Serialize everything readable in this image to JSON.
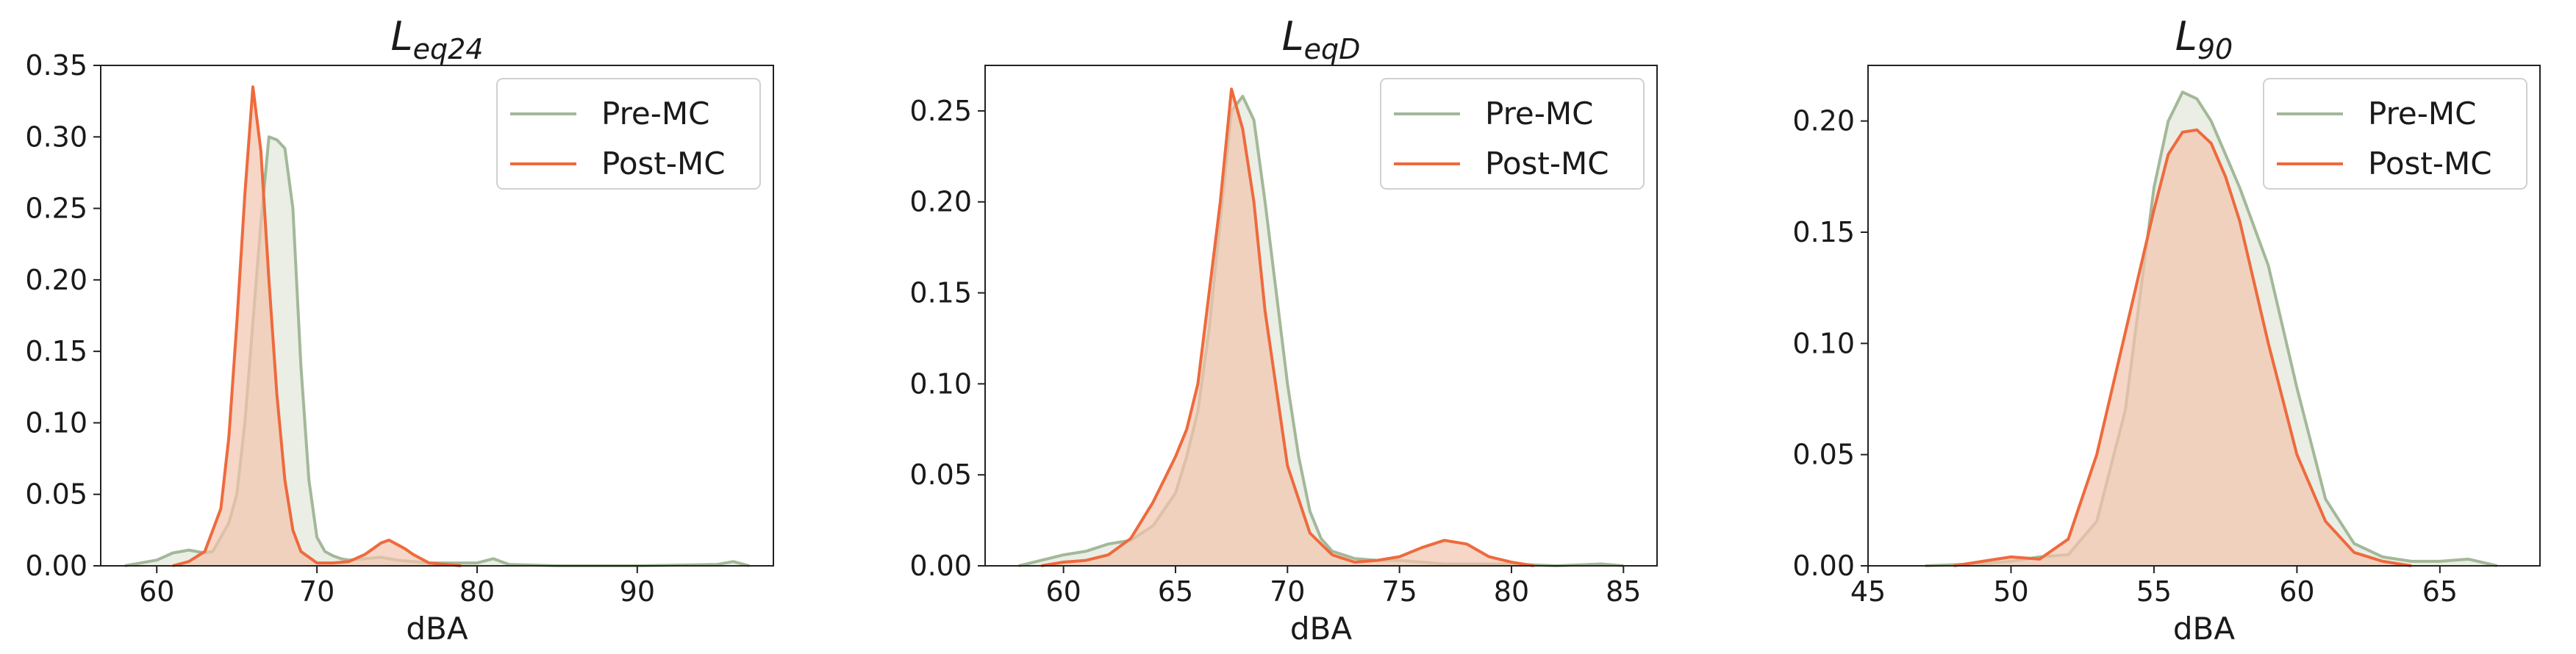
{
  "colors": {
    "pre": "#a3b899",
    "pre_fill": "#e6ebdf",
    "post": "#ee6a3d",
    "post_fill": "#f2c4ae",
    "axis": "#222222"
  },
  "chart_data": [
    {
      "type": "area",
      "title_main": "L",
      "title_sub": "eq24",
      "xlabel": "dBA",
      "xlim": [
        56.5,
        98.5
      ],
      "ylim": [
        0,
        0.35
      ],
      "xticks": [
        60,
        70,
        80,
        90
      ],
      "yticks": [
        0.0,
        0.05,
        0.1,
        0.15,
        0.2,
        0.25,
        0.3,
        0.35
      ],
      "legend": {
        "position": "top-right",
        "entries": [
          "Pre-MC",
          "Post-MC"
        ]
      },
      "series": [
        {
          "name": "Pre-MC",
          "x": [
            58.0,
            60.0,
            61.0,
            62.0,
            63.0,
            63.5,
            64.0,
            64.5,
            65.0,
            65.5,
            66.0,
            66.5,
            67.0,
            67.5,
            68.0,
            68.5,
            69.0,
            69.5,
            70.0,
            70.5,
            71.0,
            71.5,
            72.0,
            73.0,
            74.0,
            75.0,
            76.0,
            77.0,
            78.0,
            80.0,
            81.0,
            82.0,
            85.0,
            90.0,
            95.0,
            96.0,
            97.0
          ],
          "y": [
            0.0,
            0.004,
            0.009,
            0.011,
            0.009,
            0.01,
            0.02,
            0.03,
            0.05,
            0.1,
            0.17,
            0.24,
            0.3,
            0.298,
            0.292,
            0.25,
            0.14,
            0.06,
            0.02,
            0.01,
            0.007,
            0.005,
            0.004,
            0.005,
            0.006,
            0.004,
            0.003,
            0.002,
            0.002,
            0.002,
            0.005,
            0.001,
            0.0,
            0.0,
            0.001,
            0.003,
            0.0
          ]
        },
        {
          "name": "Post-MC",
          "x": [
            61.0,
            62.0,
            63.0,
            64.0,
            64.5,
            65.0,
            65.5,
            66.0,
            66.5,
            67.0,
            67.5,
            68.0,
            68.5,
            69.0,
            70.0,
            71.0,
            72.0,
            73.0,
            73.5,
            74.0,
            74.5,
            75.0,
            75.5,
            76.0,
            77.0,
            78.0,
            79.0
          ],
          "y": [
            0.0,
            0.003,
            0.01,
            0.04,
            0.09,
            0.17,
            0.26,
            0.335,
            0.29,
            0.2,
            0.12,
            0.06,
            0.025,
            0.01,
            0.002,
            0.002,
            0.003,
            0.008,
            0.012,
            0.016,
            0.018,
            0.015,
            0.012,
            0.008,
            0.002,
            0.001,
            0.0
          ]
        }
      ]
    },
    {
      "type": "area",
      "title_main": "L",
      "title_sub": "eqD",
      "xlabel": "dBA",
      "xlim": [
        56.5,
        86.5
      ],
      "ylim": [
        0,
        0.275
      ],
      "xticks": [
        60,
        65,
        70,
        75,
        80,
        85
      ],
      "yticks": [
        0.0,
        0.05,
        0.1,
        0.15,
        0.2,
        0.25
      ],
      "legend": {
        "position": "top-right",
        "entries": [
          "Pre-MC",
          "Post-MC"
        ]
      },
      "series": [
        {
          "name": "Pre-MC",
          "x": [
            58.0,
            59.0,
            60.0,
            61.0,
            62.0,
            63.0,
            64.0,
            65.0,
            65.5,
            66.0,
            66.5,
            67.0,
            67.5,
            68.0,
            68.5,
            69.0,
            69.5,
            70.0,
            70.5,
            71.0,
            71.5,
            72.0,
            73.0,
            74.0,
            75.0,
            76.0,
            77.0,
            78.0,
            80.0,
            82.0,
            84.0,
            85.0
          ],
          "y": [
            0.0,
            0.003,
            0.006,
            0.008,
            0.012,
            0.014,
            0.022,
            0.04,
            0.06,
            0.085,
            0.13,
            0.19,
            0.25,
            0.258,
            0.245,
            0.2,
            0.15,
            0.1,
            0.06,
            0.03,
            0.015,
            0.008,
            0.004,
            0.003,
            0.003,
            0.002,
            0.001,
            0.001,
            0.001,
            0.0,
            0.001,
            0.0
          ]
        },
        {
          "name": "Post-MC",
          "x": [
            59.0,
            60.0,
            61.0,
            62.0,
            63.0,
            64.0,
            65.0,
            65.5,
            66.0,
            66.5,
            67.0,
            67.5,
            68.0,
            68.5,
            69.0,
            70.0,
            71.0,
            72.0,
            73.0,
            74.0,
            75.0,
            76.0,
            77.0,
            78.0,
            79.0,
            80.0,
            81.0
          ],
          "y": [
            0.0,
            0.002,
            0.003,
            0.006,
            0.015,
            0.035,
            0.06,
            0.075,
            0.1,
            0.15,
            0.2,
            0.262,
            0.24,
            0.2,
            0.14,
            0.055,
            0.018,
            0.006,
            0.002,
            0.003,
            0.005,
            0.01,
            0.014,
            0.012,
            0.005,
            0.002,
            0.0
          ]
        }
      ]
    },
    {
      "type": "area",
      "title_main": "L",
      "title_sub": "90",
      "xlabel": "dBA",
      "xlim": [
        45,
        68.5
      ],
      "ylim": [
        0,
        0.225
      ],
      "xticks": [
        45,
        50,
        55,
        60,
        65
      ],
      "yticks": [
        0.0,
        0.05,
        0.1,
        0.15,
        0.2
      ],
      "legend": {
        "position": "top-right",
        "entries": [
          "Pre-MC",
          "Post-MC"
        ]
      },
      "series": [
        {
          "name": "Pre-MC",
          "x": [
            47.0,
            49.0,
            50.0,
            51.0,
            52.0,
            53.0,
            54.0,
            54.5,
            55.0,
            55.5,
            56.0,
            56.5,
            57.0,
            57.5,
            58.0,
            59.0,
            60.0,
            61.0,
            62.0,
            63.0,
            64.0,
            65.0,
            66.0,
            67.0
          ],
          "y": [
            0.0,
            0.001,
            0.002,
            0.004,
            0.005,
            0.02,
            0.07,
            0.12,
            0.17,
            0.2,
            0.213,
            0.21,
            0.2,
            0.185,
            0.17,
            0.135,
            0.08,
            0.03,
            0.01,
            0.004,
            0.002,
            0.002,
            0.003,
            0.0
          ]
        },
        {
          "name": "Post-MC",
          "x": [
            48.0,
            49.0,
            50.0,
            51.0,
            52.0,
            53.0,
            54.0,
            55.0,
            55.5,
            56.0,
            56.5,
            57.0,
            57.5,
            58.0,
            59.0,
            60.0,
            61.0,
            62.0,
            63.0,
            64.0
          ],
          "y": [
            0.0,
            0.002,
            0.004,
            0.003,
            0.012,
            0.05,
            0.105,
            0.16,
            0.185,
            0.195,
            0.196,
            0.19,
            0.175,
            0.155,
            0.1,
            0.05,
            0.02,
            0.006,
            0.002,
            0.0
          ]
        }
      ]
    }
  ]
}
